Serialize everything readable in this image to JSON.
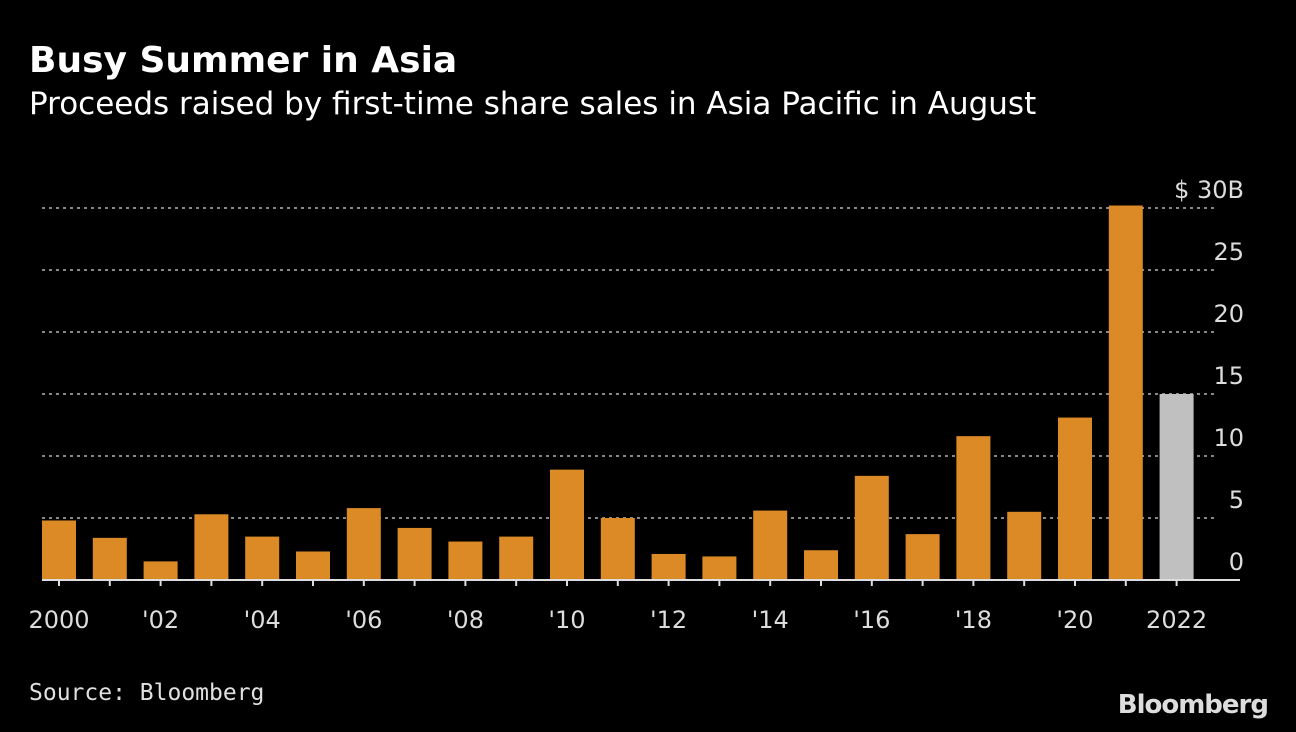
{
  "title": "Busy Summer in Asia",
  "subtitle": "Proceeds raised by first-time share sales in Asia Pacific in August",
  "source": "Source: Bloomberg",
  "logo": "Bloomberg",
  "colors": {
    "bar": "#dc8a26",
    "highlight": "#c0c0c0",
    "grid": "#888888"
  },
  "chart_data": {
    "type": "bar",
    "title": "Busy Summer in Asia",
    "ylabel": "$ billions",
    "ylim": [
      0,
      30
    ],
    "yticks": [
      0,
      5,
      10,
      15,
      20,
      25,
      30
    ],
    "ytick_labels": [
      "0",
      "5",
      "10",
      "15",
      "20",
      "25",
      "$ 30B"
    ],
    "categories": [
      "2000",
      "2001",
      "2002",
      "2003",
      "2004",
      "2005",
      "2006",
      "2007",
      "2008",
      "2009",
      "2010",
      "2011",
      "2012",
      "2013",
      "2014",
      "2015",
      "2016",
      "2017",
      "2018",
      "2019",
      "2020",
      "2021",
      "2022"
    ],
    "xtick_labels": {
      "2000": "2000",
      "2002": "'02",
      "2004": "'04",
      "2006": "'06",
      "2008": "'08",
      "2010": "'10",
      "2012": "'12",
      "2014": "'14",
      "2016": "'16",
      "2018": "'18",
      "2020": "'20",
      "2022": "2022"
    },
    "values": [
      4.8,
      3.4,
      1.5,
      5.3,
      3.5,
      2.3,
      5.8,
      4.2,
      3.1,
      3.5,
      8.9,
      5.0,
      2.1,
      1.9,
      5.6,
      2.4,
      8.4,
      3.7,
      11.6,
      5.5,
      13.1,
      30.2,
      15.0
    ],
    "highlight": [
      "2022"
    ],
    "grid": true
  }
}
